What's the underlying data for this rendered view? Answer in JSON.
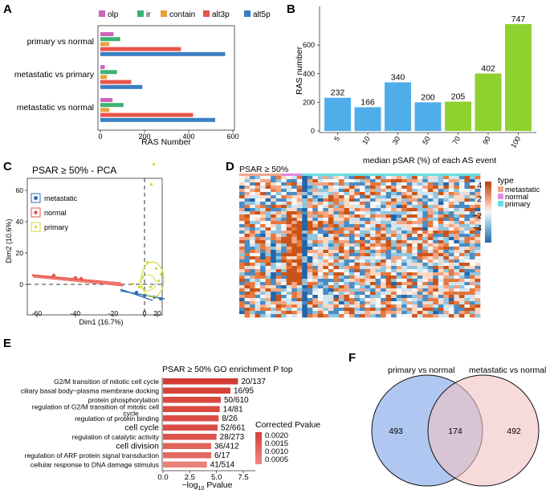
{
  "panels": {
    "a": {
      "label": "A",
      "legend": [
        {
          "name": "olp",
          "color": "#CC66BB"
        },
        {
          "name": "ir",
          "color": "#3CB371"
        },
        {
          "name": "contain",
          "color": "#E6A23C"
        },
        {
          "name": "alt3p",
          "color": "#E8554A"
        },
        {
          "name": "alt5p",
          "color": "#3A7FC1"
        }
      ],
      "chart_data": {
        "type": "bar",
        "orientation": "horizontal",
        "xlabel": "RAS Number",
        "xlim": [
          0,
          620
        ],
        "xticks": [
          "0",
          "200",
          "400",
          "600"
        ],
        "categories": [
          "primary vs normal",
          "metastatic vs primary",
          "metastatic vs normal"
        ],
        "series": [
          {
            "name": "olp",
            "values": [
              60,
              20,
              55
            ]
          },
          {
            "name": "ir",
            "values": [
              90,
              75,
              105
            ]
          },
          {
            "name": "contain",
            "values": [
              40,
              30,
              40
            ]
          },
          {
            "name": "alt3p",
            "values": [
              365,
              140,
              420
            ]
          },
          {
            "name": "alt5p",
            "values": [
              565,
              190,
              520
            ]
          }
        ]
      }
    },
    "b": {
      "label": "B",
      "chart_data": {
        "type": "bar",
        "ylabel": "RAS number",
        "xlabel": "median pSAR (%) of each AS event",
        "categories": [
          "5",
          "10",
          "30",
          "50",
          "70",
          "90",
          "100"
        ],
        "values": [
          232,
          166,
          340,
          200,
          205,
          402,
          747
        ],
        "colors": [
          "#4FAEEA",
          "#4FAEEA",
          "#4FAEEA",
          "#4FAEEA",
          "#8FD12F",
          "#8FD12F",
          "#8FD12F"
        ],
        "ylim": [
          0,
          780
        ],
        "yticks": [
          "0",
          "200",
          "400",
          "600"
        ]
      }
    },
    "c": {
      "label": "C",
      "title": "PSAR ≥ 50% - PCA",
      "xlabel": "Dim1 (16.7%)",
      "ylabel": "Dim2 (10.6%)",
      "xticks": [
        "-60",
        "-40",
        "-20",
        "0",
        "20"
      ],
      "yticks": [
        "0",
        "20",
        "40",
        "60"
      ],
      "legend": [
        {
          "name": "metastatic",
          "color": "#2E6DB4",
          "shape": "circle"
        },
        {
          "name": "normal",
          "color": "#E8554A",
          "shape": "diamond"
        },
        {
          "name": "primary",
          "color": "#D4DC3C",
          "shape": "square"
        }
      ]
    },
    "d": {
      "label": "D",
      "title": "PSAR ≥ 50%",
      "legend_title": "type",
      "type_legend": [
        {
          "name": "metastatic",
          "color": "#F4A58C"
        },
        {
          "name": "normal",
          "color": "#E38BE4"
        },
        {
          "name": "primary",
          "color": "#66E0E0"
        }
      ],
      "scale_ticks": [
        "4",
        "2",
        "0",
        "−2",
        "−4"
      ]
    },
    "e": {
      "label": "E",
      "title": "PSAR ≥ 50% GO enrichment P top",
      "xlabel": "−log",
      "xlabel_sub": "10",
      "xlabel_tail": " Pvalue",
      "xticks": [
        "0.0",
        "2.5",
        "5.0",
        "7.5"
      ],
      "legend_title": "Corrected Pvalue",
      "legend_ticks": [
        "0.0020",
        "0.0015",
        "0.0010",
        "0.0005"
      ],
      "chart_data": {
        "type": "bar",
        "orientation": "horizontal",
        "categories": [
          "G2/M transition of mitotic cell cycle",
          "ciliary basal body−plasma membrane docking",
          "protein phosphorylation",
          "regulation of G2/M transition of mitotic cell cycle",
          "regulation of protein binding",
          "cell cycle",
          "regulation of catalytic activity",
          "cell division",
          "regulation of ARF protein signal transduction",
          "cellular response to DNA damage stimulus"
        ],
        "category_lines": [
          [
            "G2/M transition of mitotic cell cycle"
          ],
          [
            "ciliary basal body−plasma membrane docking"
          ],
          [
            "protein phosphorylation"
          ],
          [
            "regulation of G2/M transition of mitotic cell",
            "cycle"
          ],
          [
            "regulation of protein binding"
          ],
          [
            "cell cycle"
          ],
          [
            "regulation of catalytic activity"
          ],
          [
            "cell division"
          ],
          [
            "regulation of ARF protein signal transduction"
          ],
          [
            "cellular response to DNA damage stimulus"
          ]
        ],
        "values": [
          7.0,
          6.3,
          5.4,
          5.3,
          5.2,
          5.1,
          5.0,
          4.5,
          4.5,
          4.1
        ],
        "data_labels": [
          "20/137",
          "16/95",
          "50/610",
          "14/81",
          "8/26",
          "52/661",
          "28/273",
          "36/412",
          "6/17",
          "41/514"
        ],
        "xlim": [
          0,
          8
        ]
      }
    },
    "f": {
      "label": "F",
      "left_title": "primary vs normal",
      "right_title": "metastatic vs normal",
      "left_only": "493",
      "overlap": "174",
      "right_only": "492"
    }
  }
}
